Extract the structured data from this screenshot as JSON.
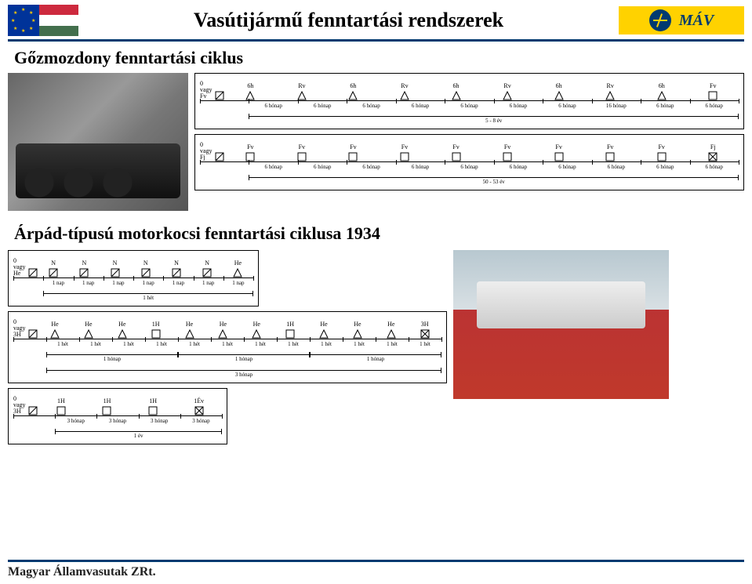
{
  "header": {
    "title": "Vasútijármű fenntartási rendszerek",
    "mav": "MÁV",
    "flag": {
      "hu": [
        "#cd2a3e",
        "#ffffff",
        "#436f4d"
      ],
      "eu_bg": "#003399",
      "eu_star": "#ffcc00"
    },
    "bar_color": "#003a70",
    "mav_bg": "#ffd200"
  },
  "steam": {
    "title": "Gőzmozdony fenntartási ciklus",
    "diagram1": {
      "left": "0\nvagy\nFv",
      "symbols": [
        {
          "t": "6h",
          "s": "tri"
        },
        {
          "t": "Rv",
          "s": "tri"
        },
        {
          "t": "6h",
          "s": "tri"
        },
        {
          "t": "Rv",
          "s": "tri"
        },
        {
          "t": "6h",
          "s": "tri"
        },
        {
          "t": "Rv",
          "s": "tri"
        },
        {
          "t": "6h",
          "s": "tri"
        },
        {
          "t": "Rv",
          "s": "tri"
        },
        {
          "t": "6h",
          "s": "tri"
        },
        {
          "t": "Fv",
          "s": "box"
        }
      ],
      "gaps": [
        "6 hónap",
        "6 hónap",
        "6 hónap",
        "6 hónap",
        "6 hónap",
        "6 hónap",
        "6 hónap",
        "16 hónap",
        "6 hónap",
        "6 hónap"
      ],
      "span": "5 - 8 év"
    },
    "diagram2": {
      "left": "0\nvagy\nFj",
      "symbols": [
        {
          "t": "Fv",
          "s": "box"
        },
        {
          "t": "Fv",
          "s": "box"
        },
        {
          "t": "Fv",
          "s": "box"
        },
        {
          "t": "Fv",
          "s": "box"
        },
        {
          "t": "Fv",
          "s": "box"
        },
        {
          "t": "Fv",
          "s": "box"
        },
        {
          "t": "Fv",
          "s": "box"
        },
        {
          "t": "Fv",
          "s": "box"
        },
        {
          "t": "Fv",
          "s": "box"
        },
        {
          "t": "Fj",
          "s": "xbox"
        }
      ],
      "gaps": [
        "6 hónap",
        "6 hónap",
        "6 hónap",
        "6 hónap",
        "6 hónap",
        "6 hónap",
        "6 hónap",
        "6 hónap",
        "6 hónap",
        "6 hónap"
      ],
      "span": "50 - 53 év"
    }
  },
  "arpad": {
    "title": "Árpád-típusú motorkocsi fenntartási ciklusa 1934",
    "diagramA": {
      "left": "0\nvagy\nHe",
      "symbols": [
        {
          "t": "N",
          "s": "diag"
        },
        {
          "t": "N",
          "s": "diag"
        },
        {
          "t": "N",
          "s": "diag"
        },
        {
          "t": "N",
          "s": "diag"
        },
        {
          "t": "N",
          "s": "diag"
        },
        {
          "t": "N",
          "s": "diag"
        },
        {
          "t": "He",
          "s": "tri"
        }
      ],
      "gaps": [
        "1 nap",
        "1 nap",
        "1 nap",
        "1 nap",
        "1 nap",
        "1 nap",
        "1 nap"
      ],
      "span": "1 hét"
    },
    "diagramB": {
      "left": "0\nvagy\n3H",
      "symbols": [
        {
          "t": "He",
          "s": "tri"
        },
        {
          "t": "He",
          "s": "tri"
        },
        {
          "t": "He",
          "s": "tri"
        },
        {
          "t": "1H",
          "s": "box"
        },
        {
          "t": "He",
          "s": "tri"
        },
        {
          "t": "He",
          "s": "tri"
        },
        {
          "t": "He",
          "s": "tri"
        },
        {
          "t": "1H",
          "s": "box"
        },
        {
          "t": "He",
          "s": "tri"
        },
        {
          "t": "He",
          "s": "tri"
        },
        {
          "t": "He",
          "s": "tri"
        },
        {
          "t": "3H",
          "s": "xbox"
        }
      ],
      "gaps": [
        "1 hét",
        "1 hét",
        "1 hét",
        "1 hét",
        "1 hét",
        "1 hét",
        "1 hét",
        "1 hét",
        "1 hét",
        "1 hét",
        "1 hét",
        "1 hét"
      ],
      "spans": [
        {
          "from": 0,
          "to": 4,
          "label": "1 hónap"
        },
        {
          "from": 4,
          "to": 8,
          "label": "1 hónap"
        },
        {
          "from": 8,
          "to": 12,
          "label": "1 hónap"
        }
      ],
      "bigspan": "3 hónap"
    },
    "diagramC": {
      "left": "0\nvagy\n3H",
      "symbols": [
        {
          "t": "1H",
          "s": "box"
        },
        {
          "t": "1H",
          "s": "box"
        },
        {
          "t": "1H",
          "s": "box"
        },
        {
          "t": "1Év",
          "s": "xbox"
        }
      ],
      "gaps": [
        "3 hónap",
        "3 hónap",
        "3 hónap",
        "3 hónap"
      ],
      "span": "1 év"
    }
  },
  "footer": "Magyar Államvasutak ZRt."
}
